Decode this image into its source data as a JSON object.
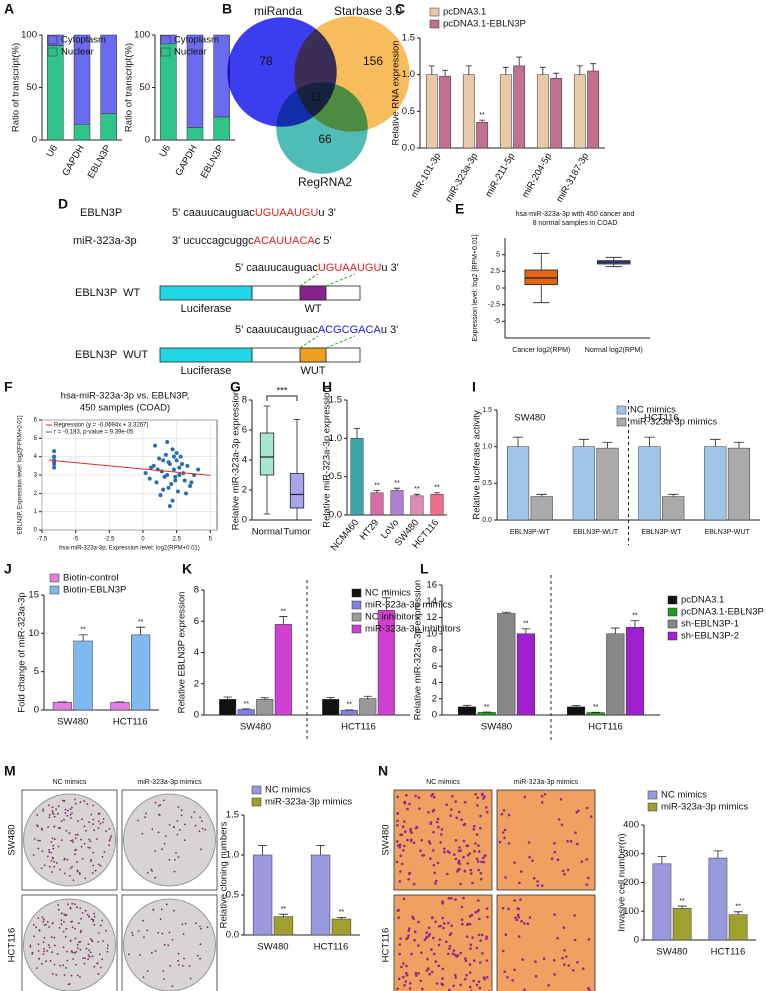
{
  "chart_data": [
    {
      "panel": "A",
      "type": "stacked_bar",
      "ylabel": "Ratio of transcript(%)",
      "categories": [
        "U6",
        "GAPDH",
        "EBLN3P"
      ],
      "series": [
        {
          "name": "Cytoplasm",
          "color": "#6b6bf0",
          "values": [
            10,
            85,
            75
          ]
        },
        {
          "name": "Nuclear",
          "color": "#2ec48a",
          "values": [
            90,
            15,
            25
          ]
        }
      ],
      "ylim": [
        0,
        100
      ],
      "yticks": [
        0,
        50,
        100
      ]
    },
    {
      "type": "stacked_bar",
      "ylabel": "Ratio of transcript(%)",
      "categories": [
        "U6",
        "GAPDH",
        "EBLN3P"
      ],
      "series": [
        {
          "name": "Cytoplasm",
          "color": "#6b6bf0",
          "values": [
            8,
            88,
            78
          ]
        },
        {
          "name": "Nuclear",
          "color": "#2ec48a",
          "values": [
            92,
            12,
            22
          ]
        }
      ],
      "ylim": [
        0,
        100
      ],
      "yticks": [
        0,
        50,
        100
      ]
    },
    {
      "panel": "C",
      "type": "bar",
      "ylabel": "Relative RNA expression",
      "categories": [
        "miR-101-3p",
        "miR-323a-3p",
        "miR-211-5p",
        "miR-204-5p",
        "miR-3187-3p"
      ],
      "series": [
        {
          "name": "pcDNA3.1",
          "color": "#e8c9a8",
          "values": [
            1,
            1,
            1,
            1,
            1
          ],
          "errors": [
            0.12,
            0.12,
            0.1,
            0.1,
            0.12
          ]
        },
        {
          "name": "pcDNA3.1-EBLN3P",
          "color": "#c07090",
          "values": [
            0.98,
            0.35,
            1.12,
            0.95,
            1.05
          ],
          "errors": [
            0.08,
            0.03,
            0.12,
            0.07,
            0.1
          ],
          "significance": [
            null,
            "**",
            null,
            null,
            null
          ]
        }
      ],
      "ylim": [
        0,
        1.5
      ],
      "yticks": [
        {
          "value": 0,
          "label": "0.0"
        },
        {
          "value": 0.5,
          "label": "0.5"
        },
        {
          "value": 1,
          "label": "1.0"
        },
        {
          "value": 1.5,
          "label": "1.5"
        }
      ]
    },
    {
      "panel": "E",
      "type": "box",
      "title": [
        "hsa-miR-323a-3p with 450 cancer and",
        "8 normal samples in COAD"
      ],
      "ylabel": "Expression level: log2 [RPM+0.01]",
      "categories": [
        "Cancer log2(RPM)",
        "Normal log2(RPM)"
      ],
      "boxes": [
        {
          "min": -2.2,
          "q1": 0.5,
          "median": 1.5,
          "q3": 2.7,
          "max": 5.2,
          "color": "#e0661a"
        },
        {
          "min": 3.2,
          "q1": 3.6,
          "median": 3.9,
          "q3": 4.1,
          "max": 4.6,
          "color": "#4b55c4"
        }
      ],
      "ylim": [
        -7.5,
        7.5
      ],
      "yticks": [
        -5,
        -2.5,
        0,
        2.5,
        5
      ]
    },
    {
      "panel": "F",
      "type": "scatter",
      "title": [
        "hsa-miR-323a-3p vs. EBLN3P,",
        "450 samples (COAD)"
      ],
      "xlabel": "hsa-miR-323a-3p, Expression level: log2(RPM+0.01)",
      "ylabel": "EBLN3P, Expression level: log2[FPKM+0.01]",
      "legend_entries": [
        "Regression (y = -0.0694x + 3.3267)",
        "r = -0.183, p-value = 9.39e-05"
      ],
      "color": "#2a6fb0",
      "grid": true,
      "x": [
        -6.6,
        -6.6,
        -6.6,
        -6.6,
        -6.6,
        -6.6,
        0.2,
        0.5,
        0.8,
        1.0,
        1.2,
        1.4,
        1.5,
        1.7,
        1.8,
        2.0,
        2.1,
        2.2,
        2.3,
        2.4,
        2.5,
        2.6,
        2.7,
        2.8,
        3.0,
        3.1,
        3.3,
        3.5,
        3.8,
        4.1,
        0.9,
        1.3,
        1.6,
        1.9,
        2.2,
        2.5,
        2.9,
        3.2,
        1.1,
        1.8,
        2.4,
        2.0,
        2.7,
        1.5,
        3.6,
        0.6,
        2.3,
        1.9
      ],
      "values": [
        3.6,
        3.8,
        4.0,
        4.3,
        3.4,
        3.7,
        3.1,
        2.8,
        3.5,
        2.6,
        3.9,
        3.2,
        2.2,
        4.1,
        3.0,
        3.6,
        2.5,
        4.4,
        3.3,
        2.9,
        3.8,
        2.1,
        3.4,
        4.0,
        3.1,
        2.7,
        3.5,
        2.4,
        3.0,
        3.3,
        4.6,
        1.9,
        2.9,
        3.7,
        1.6,
        4.2,
        3.6,
        2.0,
        3.3,
        4.8,
        2.7,
        1.3,
        3.0,
        3.8,
        2.6,
        3.4,
        4.0,
        2.3
      ],
      "fit": {
        "color": "#e03030",
        "x": [
          -7,
          5
        ],
        "values": [
          3.81,
          2.98
        ]
      },
      "xlim": [
        -7.5,
        5.5
      ],
      "xticks": [
        -7.5,
        -5,
        -2.5,
        0,
        2.5,
        5
      ],
      "ylim": [
        0,
        6
      ],
      "yticks": [
        0,
        1,
        2,
        3,
        4,
        5,
        6
      ]
    },
    {
      "panel": "G",
      "type": "box",
      "ylabel": "Relative miR-323a-3p expression",
      "categories": [
        "Normal",
        "Tumor"
      ],
      "annotation": "***",
      "boxes": [
        {
          "min": 0.4,
          "q1": 3,
          "median": 4.2,
          "q3": 5.8,
          "max": 7.6,
          "color": "#a8e6cf"
        },
        {
          "min": 0,
          "q1": 0.8,
          "median": 1.7,
          "q3": 3.1,
          "max": 6.7,
          "color": "#a6a6e8"
        }
      ],
      "ylim": [
        0,
        8
      ],
      "yticks": [
        0,
        2,
        4,
        6,
        8
      ]
    },
    {
      "panel": "H",
      "type": "bar",
      "ylabel": "Relative miR-323a-3p expression",
      "categories": [
        "NCM460",
        "HT29",
        "LoVo",
        "SW480",
        "HCT116"
      ],
      "values": [
        1.0,
        0.29,
        0.32,
        0.25,
        0.27
      ],
      "errors": [
        0.13,
        0.03,
        0.03,
        0.02,
        0.02
      ],
      "colors": [
        "#3aa6a6",
        "#d86aa6",
        "#b080d0",
        "#e08ab8",
        "#f06a8a"
      ],
      "significance": [
        null,
        "**",
        "**",
        "**",
        "**"
      ],
      "ylim": [
        0,
        1.5
      ],
      "yticks": [
        {
          "value": 0,
          "label": "0.0"
        },
        {
          "value": 0.5,
          "label": "0.5"
        },
        {
          "value": 1,
          "label": "1.0"
        },
        {
          "value": 1.5,
          "label": "1.5"
        }
      ]
    },
    {
      "panel": "I",
      "type": "bar",
      "ylabel": "Relative luciferase activity",
      "categories": [
        "EBLN3P-WT",
        "EBLN3P-WUT",
        "EBLN3P-WT",
        "EBLN3P-WUT"
      ],
      "groups": [
        "SW480",
        "HCT116"
      ],
      "series": [
        {
          "name": "NC mimics",
          "color": "#9fc5e8",
          "values": [
            1,
            1,
            1,
            1
          ],
          "errors": [
            0.13,
            0.1,
            0.13,
            0.1
          ]
        },
        {
          "name": "miR-323a-3p mimics",
          "color": "#aaaaaa",
          "values": [
            0.32,
            0.98,
            0.32,
            0.98
          ],
          "errors": [
            0.03,
            0.08,
            0.03,
            0.08
          ]
        }
      ],
      "ylim": [
        0,
        1.5
      ],
      "yticks": [
        {
          "value": 0,
          "label": "0.0"
        },
        {
          "value": 0.5,
          "label": "0.5"
        },
        {
          "value": 1,
          "label": "1.0"
        },
        {
          "value": 1.5,
          "label": "1.5"
        }
      ]
    },
    {
      "panel": "J",
      "type": "bar",
      "ylabel": "Fold change of miR-323a-3p",
      "categories": [
        "SW480",
        "HCT116"
      ],
      "series": [
        {
          "name": "Biotin-control",
          "color": "#e080e0",
          "values": [
            1,
            1
          ],
          "errors": [
            0.05,
            0.05
          ]
        },
        {
          "name": "Biotin-EBLN3P",
          "color": "#80b8f0",
          "values": [
            9,
            9.8
          ],
          "errors": [
            0.8,
            1.0
          ],
          "significance": [
            "**",
            "**"
          ]
        }
      ],
      "ylim": [
        0,
        15
      ],
      "yticks": [
        0,
        5,
        10,
        15
      ]
    },
    {
      "panel": "K",
      "type": "bar",
      "ylabel": "Relative EBLN3P expression",
      "categories": [
        "SW480",
        "HCT116"
      ],
      "series": [
        {
          "name": "NC mimics",
          "color": "#111111",
          "values": [
            1,
            1
          ],
          "errors": [
            0.15,
            0.12
          ]
        },
        {
          "name": "miR-323a-3p mimics",
          "color": "#8080e0",
          "values": [
            0.35,
            0.3
          ],
          "errors": [
            0.04,
            0.03
          ],
          "significance": [
            "**",
            "**"
          ]
        },
        {
          "name": "NC inhibitors",
          "color": "#999999",
          "values": [
            1,
            1.05
          ],
          "errors": [
            0.1,
            0.15
          ]
        },
        {
          "name": "miR-323a-3p inhibitors",
          "color": "#d040d0",
          "values": [
            5.8,
            6.7
          ],
          "errors": [
            0.5,
            0.8
          ],
          "significance": [
            "**",
            "**"
          ]
        }
      ],
      "ylim": [
        0,
        8
      ],
      "yticks": [
        0,
        2,
        4,
        6,
        8
      ]
    },
    {
      "panel": "L",
      "type": "bar",
      "ylabel": "Relative miR-323a-3p expression",
      "categories": [
        "SW480",
        "HCT116"
      ],
      "series": [
        {
          "name": "pcDNA3.1",
          "color": "#111111",
          "values": [
            1,
            1
          ],
          "errors": [
            0.2,
            0.15
          ]
        },
        {
          "name": "pcDNA3.1-EBLN3P",
          "color": "#229922",
          "values": [
            0.32,
            0.3
          ],
          "errors": [
            0.04,
            0.03
          ],
          "significance": [
            "**",
            "**"
          ]
        },
        {
          "name": "sh-EBLN3P-1",
          "color": "#888888",
          "values": [
            12.5,
            10
          ],
          "errors": [
            0.15,
            0.7
          ]
        },
        {
          "name": "sh-EBLN3P-2",
          "color": "#a020d0",
          "values": [
            10,
            10.8
          ],
          "errors": [
            0.6,
            0.8
          ],
          "significance": [
            "**",
            "**"
          ]
        }
      ],
      "ylim": [
        0,
        16
      ],
      "yticks": [
        0,
        2,
        4,
        6,
        8,
        10,
        12,
        14,
        16
      ]
    },
    {
      "type": "bar",
      "ylabel": "Relative cloning numbers",
      "categories": [
        "SW480",
        "HCT116"
      ],
      "series": [
        {
          "name": "NC mimics",
          "color": "#9999dd",
          "values": [
            1,
            1
          ],
          "errors": [
            0.12,
            0.12
          ]
        },
        {
          "name": "miR-323a-3p mimics",
          "color": "#a0a030",
          "values": [
            0.23,
            0.2
          ],
          "errors": [
            0.03,
            0.02
          ],
          "significance": [
            "**",
            "**"
          ]
        }
      ],
      "ylim": [
        0,
        1.5
      ],
      "yticks": [
        {
          "value": 0,
          "label": "0.0"
        },
        {
          "value": 0.5,
          "label": "0.5"
        },
        {
          "value": 1,
          "label": "1.0"
        },
        {
          "value": 1.5,
          "label": "1.5"
        }
      ]
    },
    {
      "type": "bar",
      "ylabel": "Invasive cell number(n)",
      "categories": [
        "SW480",
        "HCT116"
      ],
      "series": [
        {
          "name": "NC mimics",
          "color": "#9999dd",
          "values": [
            265,
            285
          ],
          "errors": [
            25,
            25
          ]
        },
        {
          "name": "miR-323a-3p mimics",
          "color": "#a0a030",
          "values": [
            110,
            88
          ],
          "errors": [
            8,
            10
          ],
          "significance": [
            "**",
            "**"
          ]
        }
      ],
      "ylim": [
        0,
        400
      ],
      "yticks": [
        0,
        100,
        200,
        300,
        400
      ]
    }
  ],
  "venn": {
    "panel": "B",
    "sets": [
      {
        "name": "miRanda",
        "count": 78,
        "color": "#1a1aee"
      },
      {
        "name": "Starbase 3.0",
        "count": 156,
        "color": "#f8b040"
      },
      {
        "name": "RegRNA2",
        "count": 66,
        "color": "#30b0a8"
      }
    ],
    "center": 11
  },
  "diagram": {
    "panel": "D",
    "pairs": [
      {
        "name": "EBLN3P",
        "seq": [
          "5' caauucauguac",
          "UGUAAUGU",
          "u 3'"
        ],
        "seq_color": "#e02020"
      },
      {
        "name": "miR-323a-3p",
        "seq": [
          "3' ucuccagcuggc",
          "ACAUUACA",
          "c 5'"
        ],
        "seq_color": "#e02020"
      }
    ],
    "constructs": [
      {
        "seq": [
          "5' caauucauguac",
          "UGUAAUGU",
          "u 3'"
        ],
        "seq_color": "#e02020",
        "name": "EBLN3P  WT",
        "gene": "Luciferase",
        "site": "WT",
        "site_color": "#882288"
      },
      {
        "seq": [
          "5' caauucauguac",
          "ACGCGACA",
          "u 3'"
        ],
        "seq_color": "#2020e0",
        "name": "EBLN3P  WUT",
        "gene": "Luciferase",
        "site": "WUT",
        "site_color": "#f0a020"
      }
    ]
  },
  "images": [
    {
      "panel": "M",
      "columns": [
        "NC mimics",
        "miR-323a-3p mimics"
      ],
      "rows": [
        "SW480",
        "HCT116"
      ]
    },
    {
      "panel": "N",
      "columns": [
        "NC mimics",
        "miR-323a-3p mimics"
      ],
      "rows": [
        "SW480",
        "HCT116"
      ]
    }
  ]
}
